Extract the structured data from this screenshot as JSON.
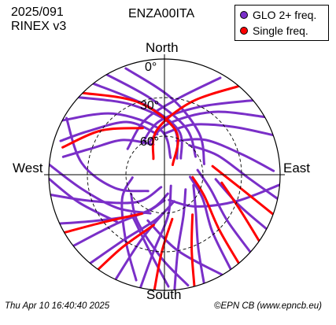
{
  "header": {
    "date_code": "2025/091",
    "rinex_version": "RINEX v3",
    "station": "ENZA00ITA"
  },
  "footer": {
    "timestamp": "Thu Apr 10 16:40:40 2025",
    "credit": "©EPN CB (www.epncb.eu)"
  },
  "chart_data": {
    "type": "polar-skyplot",
    "directions": {
      "north": "North",
      "south": "South",
      "east": "East",
      "west": "West"
    },
    "elevation_rings": [
      0,
      30,
      60
    ],
    "elevation_labels": [
      "0°",
      "30°",
      "60°"
    ],
    "legend_placement": "top-right",
    "colors": {
      "glo": "#7a2fc8",
      "single": "#ff0000",
      "grid": "#000000"
    },
    "legend": [
      {
        "label": "GLO 2+ freq.",
        "color": "#7a2fc8"
      },
      {
        "label": "Single freq.",
        "color": "#ff0000"
      }
    ],
    "tracks": [
      {
        "series": "glo",
        "points": [
          [
            -62,
            0
          ],
          [
            -40,
            28
          ],
          [
            -5,
            55
          ],
          [
            20,
            76
          ]
        ]
      },
      {
        "series": "glo",
        "points": [
          [
            -48,
            0
          ],
          [
            -25,
            30
          ],
          [
            10,
            52
          ],
          [
            38,
            74
          ]
        ]
      },
      {
        "series": "glo",
        "points": [
          [
            -38,
            0
          ],
          [
            -15,
            34
          ],
          [
            18,
            54
          ],
          [
            45,
            72
          ]
        ]
      },
      {
        "series": "glo",
        "points": [
          [
            -72,
            5
          ],
          [
            -60,
            22
          ],
          [
            -35,
            40
          ],
          [
            -10,
            58
          ]
        ]
      },
      {
        "series": "glo",
        "points": [
          [
            -80,
            10
          ],
          [
            -70,
            30
          ],
          [
            -50,
            48
          ],
          [
            -20,
            65
          ]
        ]
      },
      {
        "series": "glo",
        "points": [
          [
            -100,
            0
          ],
          [
            -110,
            30
          ],
          [
            -135,
            60
          ],
          [
            -165,
            80
          ]
        ]
      },
      {
        "series": "glo",
        "points": [
          [
            -115,
            0
          ],
          [
            -125,
            28
          ],
          [
            -150,
            55
          ],
          [
            -180,
            70
          ]
        ]
      },
      {
        "series": "glo",
        "points": [
          [
            -128,
            0
          ],
          [
            -135,
            35
          ],
          [
            -160,
            62
          ],
          [
            170,
            75
          ]
        ]
      },
      {
        "series": "glo",
        "points": [
          [
            -140,
            0
          ],
          [
            -148,
            30
          ],
          [
            -170,
            55
          ],
          [
            160,
            68
          ]
        ]
      },
      {
        "series": "glo",
        "points": [
          [
            -155,
            0
          ],
          [
            -160,
            35
          ],
          [
            -178,
            60
          ]
        ]
      },
      {
        "series": "glo",
        "points": [
          [
            -168,
            0
          ],
          [
            -172,
            30
          ],
          [
            175,
            58
          ],
          [
            150,
            80
          ]
        ]
      },
      {
        "series": "glo",
        "points": [
          [
            175,
            0
          ],
          [
            170,
            30
          ],
          [
            155,
            55
          ],
          [
            125,
            70
          ]
        ]
      },
      {
        "series": "glo",
        "points": [
          [
            160,
            0
          ],
          [
            155,
            28
          ],
          [
            140,
            52
          ],
          [
            110,
            66
          ]
        ]
      },
      {
        "series": "glo",
        "points": [
          [
            145,
            0
          ],
          [
            140,
            32
          ],
          [
            122,
            55
          ],
          [
            95,
            70
          ]
        ]
      },
      {
        "series": "glo",
        "points": [
          [
            132,
            0
          ],
          [
            126,
            30
          ],
          [
            108,
            52
          ],
          [
            82,
            64
          ]
        ]
      },
      {
        "series": "glo",
        "points": [
          [
            118,
            0
          ],
          [
            112,
            28
          ],
          [
            95,
            50
          ]
        ]
      },
      {
        "series": "glo",
        "points": [
          [
            102,
            0
          ],
          [
            92,
            25
          ],
          [
            70,
            46
          ],
          [
            40,
            60
          ]
        ]
      },
      {
        "series": "glo",
        "points": [
          [
            88,
            5
          ],
          [
            75,
            28
          ],
          [
            50,
            48
          ],
          [
            20,
            62
          ]
        ]
      },
      {
        "series": "glo",
        "points": [
          [
            70,
            0
          ],
          [
            55,
            25
          ],
          [
            30,
            45
          ],
          [
            0,
            58
          ]
        ]
      },
      {
        "series": "glo",
        "points": [
          [
            60,
            0
          ],
          [
            38,
            28
          ],
          [
            5,
            50
          ],
          [
            -25,
            62
          ]
        ]
      },
      {
        "series": "glo",
        "points": [
          [
            50,
            0
          ],
          [
            28,
            30
          ],
          [
            -5,
            48
          ],
          [
            -35,
            60
          ]
        ]
      },
      {
        "series": "glo",
        "points": [
          [
            -85,
            0
          ],
          [
            -100,
            25
          ],
          [
            -125,
            45
          ],
          [
            -160,
            58
          ]
        ]
      },
      {
        "series": "glo",
        "points": [
          [
            -92,
            0
          ],
          [
            -108,
            20
          ],
          [
            -135,
            38
          ]
        ]
      },
      {
        "series": "glo",
        "points": [
          [
            -60,
            2
          ],
          [
            -82,
            25
          ],
          [
            -105,
            50
          ],
          [
            -135,
            72
          ]
        ]
      },
      {
        "series": "glo",
        "points": [
          [
            -165,
            5
          ],
          [
            -150,
            30
          ],
          [
            -120,
            52
          ],
          [
            -95,
            65
          ]
        ]
      },
      {
        "series": "glo",
        "points": [
          [
            178,
            3
          ],
          [
            -170,
            28
          ],
          [
            -140,
            50
          ]
        ]
      },
      {
        "series": "glo",
        "points": [
          [
            168,
            2
          ],
          [
            -178,
            25
          ],
          [
            -150,
            48
          ],
          [
            -120,
            60
          ]
        ]
      },
      {
        "series": "glo",
        "points": [
          [
            150,
            0
          ],
          [
            170,
            30
          ],
          [
            -160,
            52
          ]
        ]
      },
      {
        "series": "glo",
        "points": [
          [
            -30,
            0
          ],
          [
            -10,
            30
          ],
          [
            25,
            50
          ],
          [
            60,
            62
          ]
        ]
      },
      {
        "series": "glo",
        "points": [
          [
            -20,
            2
          ],
          [
            5,
            30
          ],
          [
            40,
            48
          ],
          [
            75,
            58
          ]
        ]
      },
      {
        "series": "glo",
        "points": [
          [
            30,
            3
          ],
          [
            10,
            30
          ],
          [
            -20,
            45
          ],
          [
            -55,
            55
          ]
        ]
      },
      {
        "series": "glo",
        "points": [
          [
            95,
            0
          ],
          [
            110,
            30
          ],
          [
            135,
            55
          ],
          [
            170,
            70
          ]
        ]
      },
      {
        "series": "single",
        "points": [
          [
            -45,
            0
          ],
          [
            -20,
            30
          ],
          [
            15,
            55
          ],
          [
            40,
            80
          ]
        ]
      },
      {
        "series": "single",
        "points": [
          [
            40,
            0
          ],
          [
            20,
            30
          ],
          [
            -10,
            55
          ],
          [
            -35,
            75
          ]
        ]
      },
      {
        "series": "single",
        "points": [
          [
            -120,
            0
          ],
          [
            -128,
            30
          ],
          [
            -150,
            55
          ]
        ]
      },
      {
        "series": "single",
        "points": [
          [
            -175,
            0
          ],
          [
            -178,
            30
          ],
          [
            170,
            55
          ]
        ]
      },
      {
        "series": "single",
        "points": [
          [
            140,
            0
          ],
          [
            135,
            30
          ],
          [
            118,
            55
          ],
          [
            95,
            68
          ]
        ]
      },
      {
        "series": "single",
        "points": [
          [
            165,
            0
          ],
          [
            160,
            28
          ],
          [
            145,
            52
          ]
        ]
      },
      {
        "series": "single",
        "points": [
          [
            -75,
            8
          ],
          [
            -55,
            30
          ],
          [
            -25,
            50
          ]
        ]
      },
      {
        "series": "single",
        "points": [
          [
            110,
            0
          ],
          [
            100,
            30
          ],
          [
            80,
            52
          ]
        ]
      },
      {
        "series": "single",
        "points": [
          [
            -145,
            0
          ],
          [
            -150,
            25
          ],
          [
            -168,
            50
          ]
        ]
      },
      {
        "series": "single",
        "points": [
          [
            125,
            0
          ],
          [
            115,
            25
          ],
          [
            98,
            45
          ]
        ]
      }
    ]
  }
}
